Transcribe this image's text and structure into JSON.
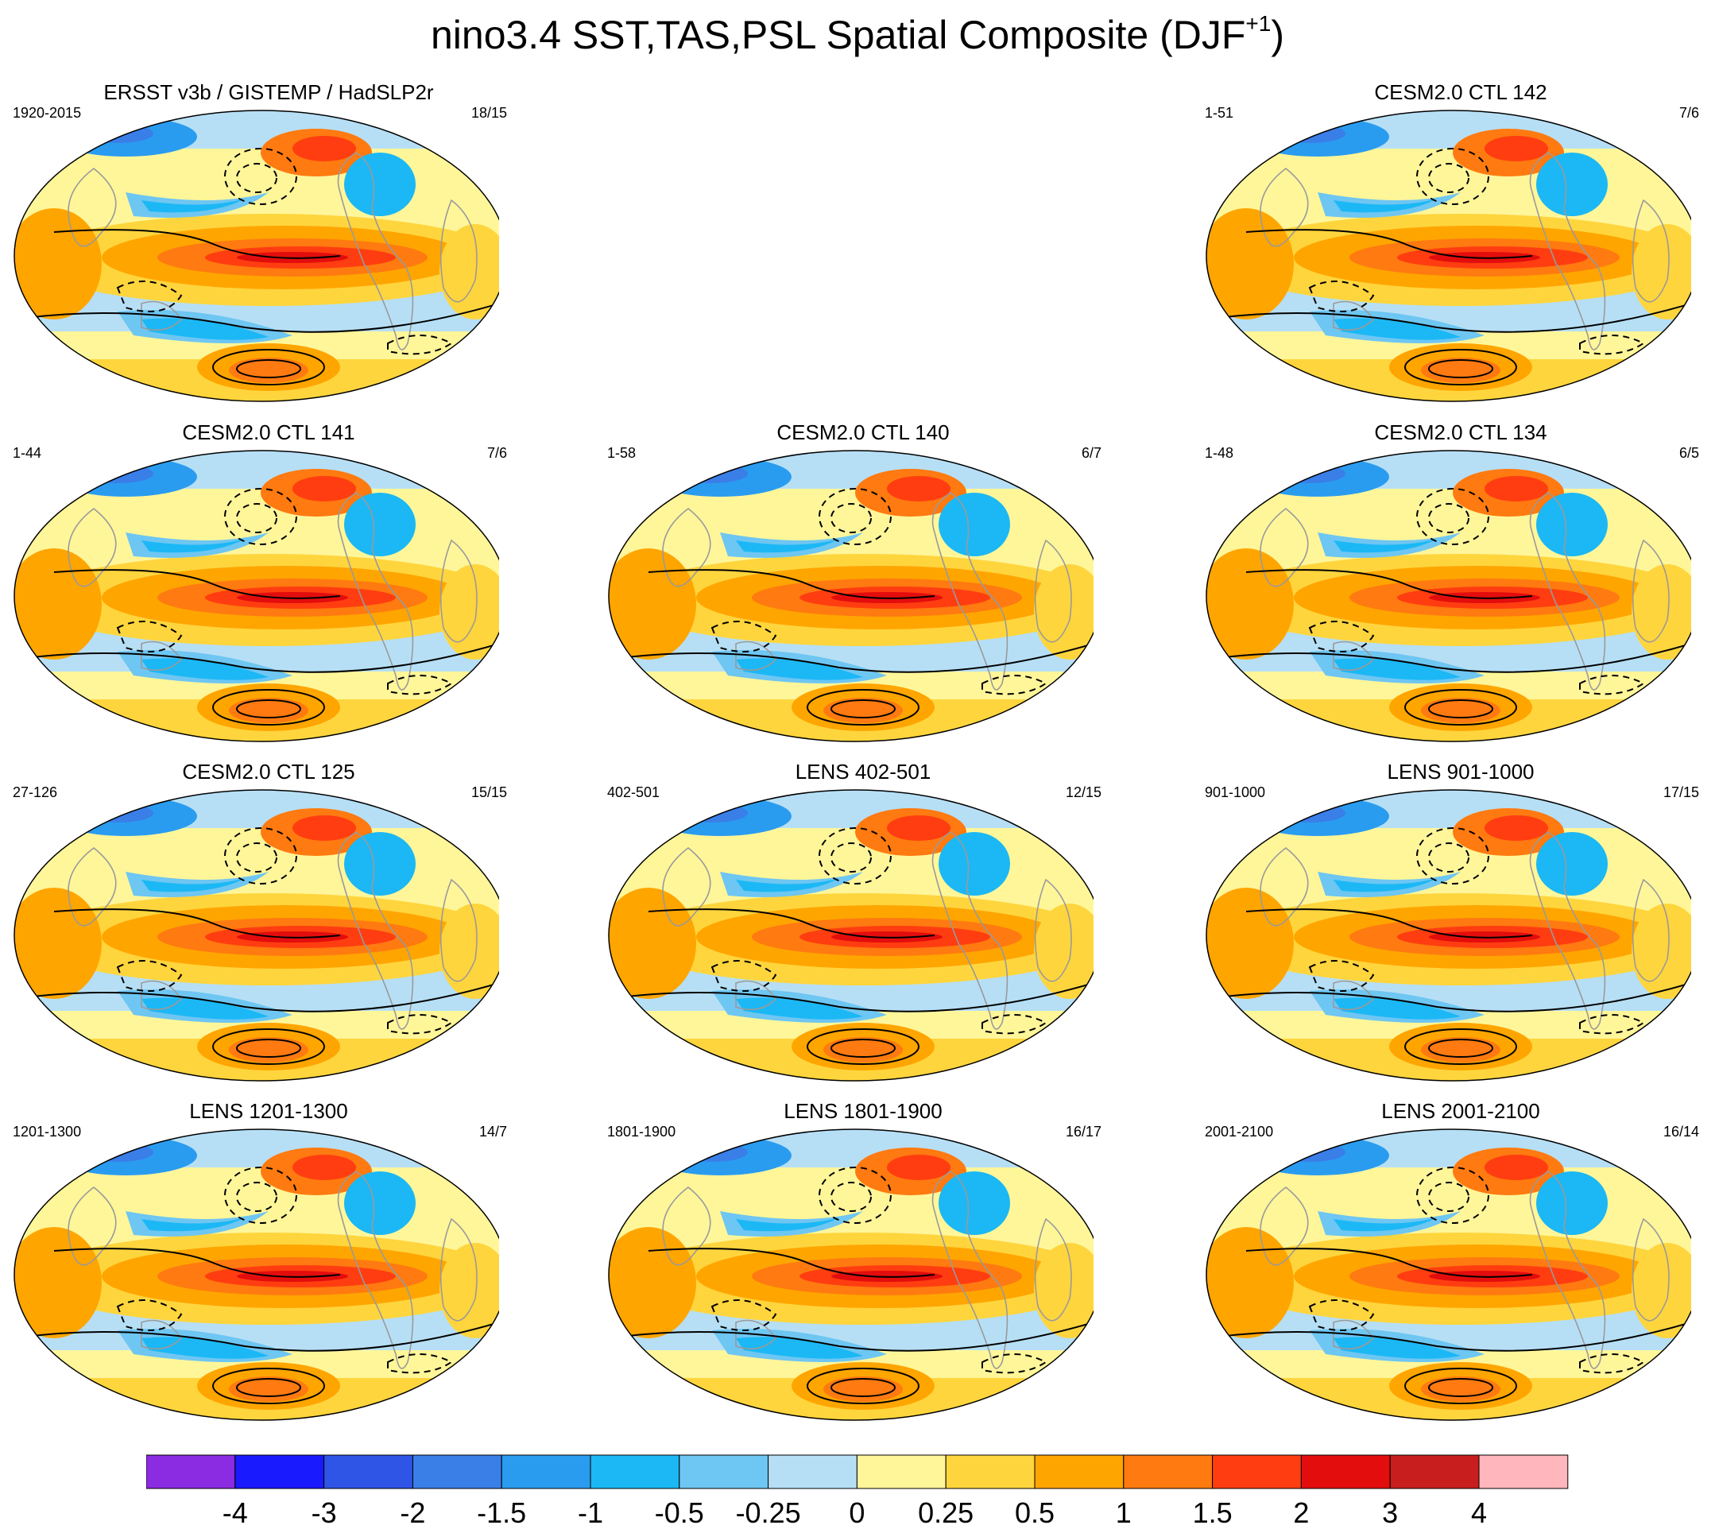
{
  "title": {
    "text": "nino3.4 SST,TAS,PSL Spatial Composite (DJF",
    "superscript": "+1",
    "suffix": ")"
  },
  "panels": [
    {
      "id": "obs",
      "title": "ERSST v3b / GISTEMP / HadSLP2r",
      "years": "1920-2015",
      "count": "18/15",
      "row": 0,
      "col": 0
    },
    {
      "id": "c142",
      "title": "CESM2.0 CTL 142",
      "years": "1-51",
      "count": "7/6",
      "row": 0,
      "col": 2
    },
    {
      "id": "c141",
      "title": "CESM2.0 CTL 141",
      "years": "1-44",
      "count": "7/6",
      "row": 1,
      "col": 0
    },
    {
      "id": "c140",
      "title": "CESM2.0 CTL 140",
      "years": "1-58",
      "count": "6/7",
      "row": 1,
      "col": 1
    },
    {
      "id": "c134",
      "title": "CESM2.0 CTL 134",
      "years": "1-48",
      "count": "6/5",
      "row": 1,
      "col": 2
    },
    {
      "id": "c125",
      "title": "CESM2.0 CTL 125",
      "years": "27-126",
      "count": "15/15",
      "row": 2,
      "col": 0
    },
    {
      "id": "l402",
      "title": "LENS 402-501",
      "years": "402-501",
      "count": "12/15",
      "row": 2,
      "col": 1
    },
    {
      "id": "l901",
      "title": "LENS 901-1000",
      "years": "901-1000",
      "count": "17/15",
      "row": 2,
      "col": 2
    },
    {
      "id": "l1201",
      "title": "LENS 1201-1300",
      "years": "1201-1300",
      "count": "14/7",
      "row": 3,
      "col": 0
    },
    {
      "id": "l1801",
      "title": "LENS 1801-1900",
      "years": "1801-1900",
      "count": "16/17",
      "row": 3,
      "col": 1
    },
    {
      "id": "l2001",
      "title": "LENS 2001-2100",
      "years": "2001-2100",
      "count": "16/14",
      "row": 3,
      "col": 2
    }
  ],
  "colorbar": {
    "colors": [
      "#8b2be2",
      "#1a1aff",
      "#2e55e6",
      "#3a7ee8",
      "#2a9cf0",
      "#1bb8f5",
      "#6ec6f2",
      "#b6dff5",
      "#fff69a",
      "#ffd53d",
      "#ffa500",
      "#ff7a10",
      "#ff3d10",
      "#e30d0d",
      "#c81e1e",
      "#ffb6bc"
    ],
    "labels": [
      "-4",
      "-3",
      "-2",
      "-1.5",
      "-1",
      "-0.5",
      "-0.25",
      "0",
      "0.25",
      "0.5",
      "1",
      "1.5",
      "2",
      "3",
      "4"
    ]
  }
}
